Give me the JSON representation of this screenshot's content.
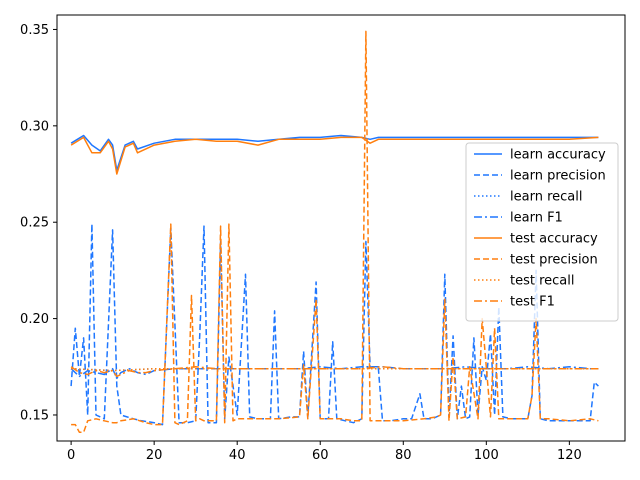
{
  "chart_data": {
    "type": "line",
    "title": "",
    "xlabel": "",
    "ylabel": "",
    "xlim": [
      -3.4,
      133.4
    ],
    "ylim": [
      0.1365,
      0.3575
    ],
    "xticks": [
      0,
      20,
      40,
      60,
      80,
      100,
      120
    ],
    "yticks": [
      0.15,
      0.2,
      0.25,
      0.3,
      0.35
    ],
    "ytick_labels": [
      "0.15",
      "0.20",
      "0.25",
      "0.30",
      "0.35"
    ],
    "grid": false,
    "legend_position": "center-right",
    "colors": {
      "learn": "#1f77ff",
      "test": "#ff7f0e"
    },
    "series": [
      {
        "name": "learn accuracy",
        "color": "#1f77ff",
        "dash": "solid",
        "x": [
          0,
          3,
          5,
          7,
          9,
          10,
          11,
          13,
          15,
          16,
          20,
          25,
          30,
          35,
          40,
          45,
          50,
          55,
          60,
          65,
          70,
          72,
          74,
          80,
          90,
          100,
          110,
          120,
          127
        ],
        "y": [
          0.291,
          0.295,
          0.29,
          0.287,
          0.293,
          0.29,
          0.277,
          0.29,
          0.292,
          0.288,
          0.291,
          0.293,
          0.293,
          0.293,
          0.293,
          0.292,
          0.293,
          0.294,
          0.294,
          0.295,
          0.294,
          0.293,
          0.294,
          0.294,
          0.294,
          0.294,
          0.294,
          0.294,
          0.294
        ]
      },
      {
        "name": "learn precision",
        "color": "#1f77ff",
        "dash": "dashed",
        "x": [
          0,
          1,
          2,
          3,
          4,
          5,
          6,
          8,
          10,
          11,
          12,
          15,
          17,
          20,
          22,
          24,
          26,
          28,
          30,
          31,
          32,
          33,
          35,
          36,
          37,
          38,
          40,
          42,
          43,
          45,
          48,
          49,
          50,
          53,
          55,
          56,
          57,
          59,
          60,
          62,
          63,
          64,
          66,
          68,
          70,
          71,
          72,
          74,
          75,
          77,
          80,
          82,
          84,
          85,
          87,
          89,
          90,
          91,
          92,
          93,
          94,
          95,
          96,
          97,
          98,
          99,
          100,
          101,
          102,
          103,
          104,
          106,
          108,
          110,
          111,
          112,
          113,
          115,
          120,
          125,
          126,
          127
        ],
        "y": [
          0.165,
          0.195,
          0.17,
          0.19,
          0.15,
          0.249,
          0.15,
          0.148,
          0.246,
          0.165,
          0.15,
          0.148,
          0.147,
          0.146,
          0.145,
          0.247,
          0.146,
          0.146,
          0.147,
          0.192,
          0.248,
          0.146,
          0.146,
          0.24,
          0.148,
          0.18,
          0.15,
          0.223,
          0.149,
          0.148,
          0.148,
          0.204,
          0.148,
          0.149,
          0.149,
          0.183,
          0.149,
          0.219,
          0.148,
          0.148,
          0.188,
          0.148,
          0.147,
          0.146,
          0.148,
          0.24,
          0.175,
          0.174,
          0.147,
          0.147,
          0.148,
          0.148,
          0.161,
          0.148,
          0.148,
          0.15,
          0.223,
          0.149,
          0.191,
          0.148,
          0.165,
          0.148,
          0.149,
          0.19,
          0.15,
          0.175,
          0.168,
          0.192,
          0.15,
          0.206,
          0.149,
          0.148,
          0.148,
          0.148,
          0.16,
          0.225,
          0.148,
          0.147,
          0.147,
          0.147,
          0.167,
          0.165
        ]
      },
      {
        "name": "learn recall",
        "color": "#1f77ff",
        "dash": "dotted",
        "x": [
          0,
          10,
          20,
          30,
          40,
          50,
          60,
          70,
          80,
          90,
          100,
          110,
          120,
          127
        ],
        "y": [
          0.174,
          0.173,
          0.174,
          0.174,
          0.174,
          0.174,
          0.174,
          0.174,
          0.174,
          0.174,
          0.174,
          0.174,
          0.174,
          0.174
        ]
      },
      {
        "name": "learn F1",
        "color": "#1f77ff",
        "dash": "dashdot",
        "x": [
          0,
          2,
          4,
          6,
          8,
          10,
          11,
          12,
          14,
          16,
          18,
          20,
          25,
          30,
          35,
          40,
          45,
          50,
          55,
          60,
          65,
          70,
          75,
          80,
          85,
          90,
          95,
          100,
          105,
          110,
          115,
          120,
          125,
          127
        ],
        "y": [
          0.174,
          0.17,
          0.173,
          0.172,
          0.171,
          0.174,
          0.169,
          0.172,
          0.174,
          0.172,
          0.171,
          0.173,
          0.174,
          0.174,
          0.174,
          0.174,
          0.174,
          0.174,
          0.174,
          0.175,
          0.174,
          0.175,
          0.175,
          0.174,
          0.174,
          0.174,
          0.175,
          0.174,
          0.174,
          0.175,
          0.174,
          0.175,
          0.174,
          0.174
        ]
      },
      {
        "name": "test accuracy",
        "color": "#ff7f0e",
        "dash": "solid",
        "x": [
          0,
          3,
          5,
          7,
          9,
          10,
          11,
          13,
          15,
          16,
          20,
          25,
          30,
          35,
          40,
          45,
          50,
          55,
          60,
          65,
          70,
          72,
          74,
          80,
          90,
          100,
          110,
          120,
          127
        ],
        "y": [
          0.29,
          0.294,
          0.286,
          0.286,
          0.292,
          0.288,
          0.275,
          0.289,
          0.291,
          0.286,
          0.29,
          0.292,
          0.293,
          0.292,
          0.292,
          0.29,
          0.293,
          0.293,
          0.293,
          0.294,
          0.294,
          0.291,
          0.293,
          0.293,
          0.293,
          0.293,
          0.293,
          0.293,
          0.294
        ]
      },
      {
        "name": "test precision",
        "color": "#ff7f0e",
        "dash": "dashed",
        "x": [
          0,
          1,
          2,
          3,
          4,
          6,
          8,
          10,
          11,
          12,
          15,
          18,
          20,
          22,
          24,
          25,
          26,
          28,
          29,
          30,
          31,
          32,
          33,
          35,
          36,
          37,
          38,
          39,
          40,
          45,
          50,
          55,
          56,
          57,
          59,
          60,
          62,
          65,
          68,
          70,
          71,
          72,
          74,
          76,
          80,
          85,
          88,
          89,
          90,
          91,
          92,
          93,
          95,
          96,
          98,
          99,
          100,
          101,
          102,
          103,
          105,
          108,
          110,
          111,
          112,
          113,
          115,
          120,
          125,
          127
        ],
        "y": [
          0.145,
          0.145,
          0.141,
          0.141,
          0.147,
          0.148,
          0.147,
          0.146,
          0.146,
          0.147,
          0.148,
          0.146,
          0.145,
          0.145,
          0.249,
          0.146,
          0.145,
          0.147,
          0.212,
          0.147,
          0.148,
          0.147,
          0.147,
          0.147,
          0.248,
          0.146,
          0.249,
          0.147,
          0.148,
          0.148,
          0.148,
          0.149,
          0.176,
          0.148,
          0.21,
          0.148,
          0.148,
          0.148,
          0.147,
          0.147,
          0.349,
          0.147,
          0.147,
          0.147,
          0.147,
          0.148,
          0.149,
          0.15,
          0.21,
          0.147,
          0.18,
          0.148,
          0.149,
          0.175,
          0.148,
          0.2,
          0.175,
          0.149,
          0.195,
          0.148,
          0.148,
          0.148,
          0.148,
          0.16,
          0.2,
          0.148,
          0.148,
          0.147,
          0.148,
          0.147
        ]
      },
      {
        "name": "test recall",
        "color": "#ff7f0e",
        "dash": "dotted",
        "x": [
          0,
          10,
          20,
          30,
          40,
          50,
          60,
          70,
          80,
          90,
          100,
          110,
          120,
          127
        ],
        "y": [
          0.174,
          0.173,
          0.174,
          0.174,
          0.174,
          0.174,
          0.174,
          0.174,
          0.174,
          0.174,
          0.174,
          0.174,
          0.174,
          0.174
        ]
      },
      {
        "name": "test F1",
        "color": "#ff7f0e",
        "dash": "dashdot",
        "x": [
          0,
          2,
          4,
          6,
          8,
          10,
          11,
          12,
          14,
          16,
          18,
          20,
          25,
          30,
          35,
          40,
          45,
          50,
          55,
          60,
          65,
          70,
          75,
          80,
          85,
          90,
          95,
          100,
          105,
          110,
          115,
          120,
          125,
          127
        ],
        "y": [
          0.175,
          0.172,
          0.171,
          0.173,
          0.172,
          0.173,
          0.17,
          0.171,
          0.173,
          0.172,
          0.172,
          0.173,
          0.174,
          0.175,
          0.174,
          0.174,
          0.174,
          0.174,
          0.174,
          0.174,
          0.174,
          0.174,
          0.175,
          0.174,
          0.174,
          0.174,
          0.174,
          0.174,
          0.174,
          0.174,
          0.174,
          0.174,
          0.174,
          0.174
        ]
      }
    ]
  }
}
